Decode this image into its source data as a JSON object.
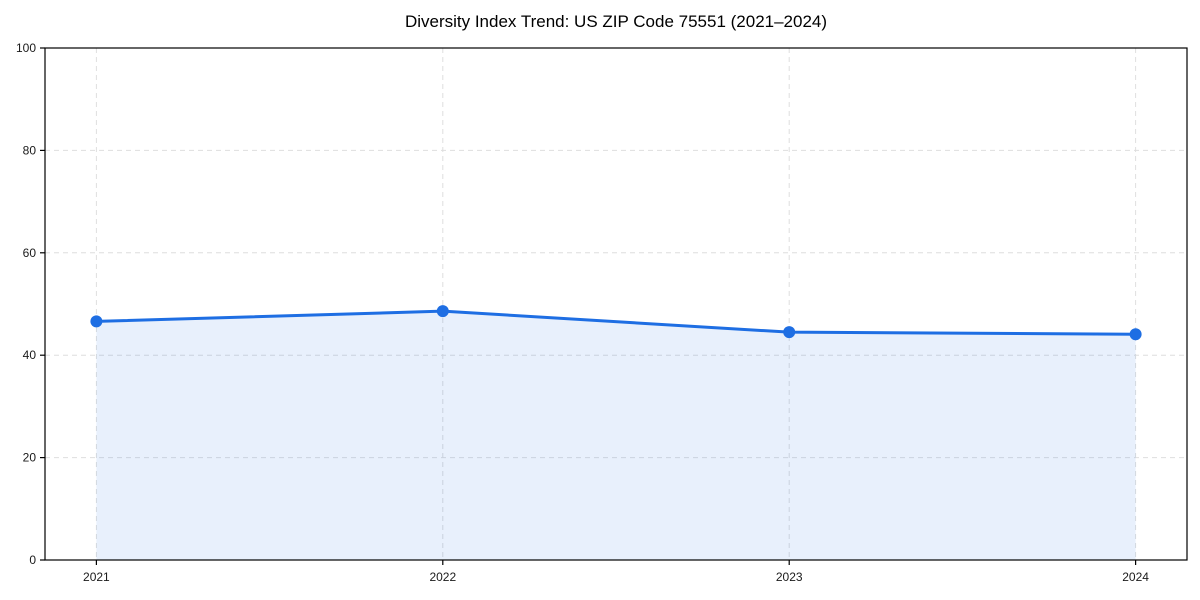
{
  "chart": {
    "title": "Diversity Index Trend: US ZIP Code 75551 (2021–2024)"
  },
  "chart_data": {
    "type": "line",
    "title": "Diversity Index Trend: US ZIP Code 75551 (2021–2024)",
    "x": [
      "2021",
      "2022",
      "2023",
      "2024"
    ],
    "series": [
      {
        "name": "Diversity Index",
        "values": [
          46.6,
          48.6,
          44.5,
          44.1
        ]
      }
    ],
    "xlabel": "",
    "ylabel": "",
    "ylim": [
      0,
      100
    ],
    "yticks": [
      0,
      20,
      40,
      60,
      80,
      100
    ],
    "grid": true,
    "grid_style": "dashed",
    "legend": false,
    "area_fill": true,
    "marker": "circle",
    "colors": {
      "line": "#1e6ee3",
      "marker": "#1e6ee3",
      "area_fill": "rgba(30,110,227,0.10)",
      "grid": "#dedede",
      "frame": "#000000",
      "tick_text": "#1a1a1a",
      "background": "#ffffff"
    }
  }
}
